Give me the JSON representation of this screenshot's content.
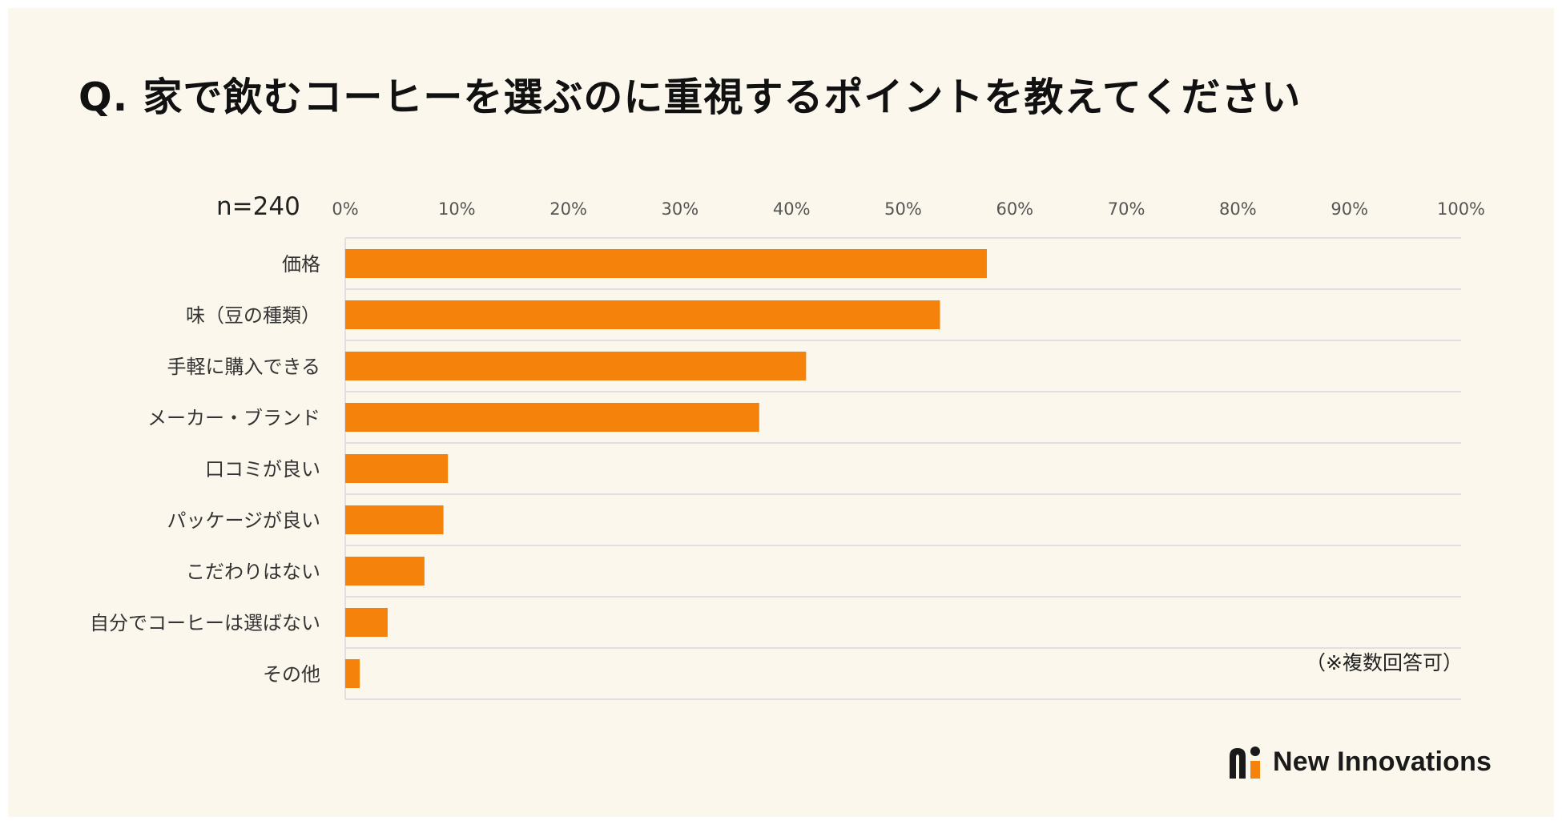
{
  "title": "Q. 家で飲むコーヒーを選ぶのに重視するポイントを教えてください",
  "sample_size": "n=240",
  "note": "（※複数回答可）",
  "logo": {
    "text": "New Innovations",
    "icon": "new-innovations-logo-icon"
  },
  "colors": {
    "bar": "#f5820b",
    "background": "#fbf7ec",
    "grid": "#d9d9d9"
  },
  "chart_data": {
    "type": "bar",
    "orientation": "horizontal",
    "title": "Q. 家で飲むコーヒーを選ぶのに重視するポイントを教えてください",
    "xlabel": "",
    "ylabel": "",
    "xlim": [
      0,
      100
    ],
    "grid": true,
    "tick_values": [
      0,
      10,
      20,
      30,
      40,
      50,
      60,
      70,
      80,
      90,
      100
    ],
    "tick_labels": [
      "0%",
      "10%",
      "20%",
      "30%",
      "40%",
      "50%",
      "60%",
      "70%",
      "80%",
      "90%",
      "100%"
    ],
    "categories": [
      "価格",
      "味（豆の種類）",
      "手軽に購入できる",
      "メーカー・ブランド",
      "口コミが良い",
      "パッケージが良い",
      "こだわりはない",
      "自分でコーヒーは選ばない",
      "その他"
    ],
    "values": [
      57.5,
      53.3,
      41.3,
      37.1,
      9.2,
      8.8,
      7.1,
      3.8,
      1.3
    ]
  }
}
